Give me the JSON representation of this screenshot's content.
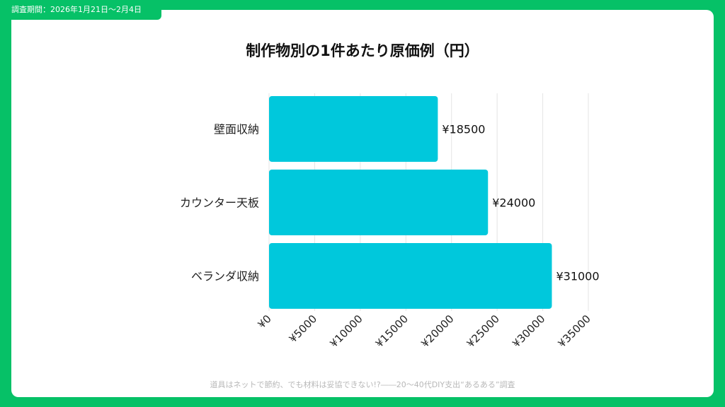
{
  "header": {
    "period": "調査期間：2026年1月21日～2月4日"
  },
  "footer": {
    "source": "道具はネットで節約、でも材料は妥協できない!?――20～40代DIY支出“あるある”調査"
  },
  "colors": {
    "frame": "#06c167",
    "bar": "#00c8dc"
  },
  "chart_data": {
    "type": "bar",
    "orientation": "horizontal",
    "title": "制作物別の1件あたり原価例（円）",
    "categories": [
      "壁面収納",
      "カウンター天板",
      "ベランダ収納"
    ],
    "values": [
      18500,
      24000,
      31000
    ],
    "data_labels": [
      "¥18500",
      "¥24000",
      "¥31000"
    ],
    "xlim": [
      0,
      35000
    ],
    "xticks": [
      0,
      5000,
      10000,
      15000,
      20000,
      25000,
      30000,
      35000
    ],
    "xtick_labels": [
      "¥0",
      "¥5000",
      "¥10000",
      "¥15000",
      "¥20000",
      "¥25000",
      "¥30000",
      "¥35000"
    ],
    "grid": true,
    "xlabel": "",
    "ylabel": ""
  }
}
